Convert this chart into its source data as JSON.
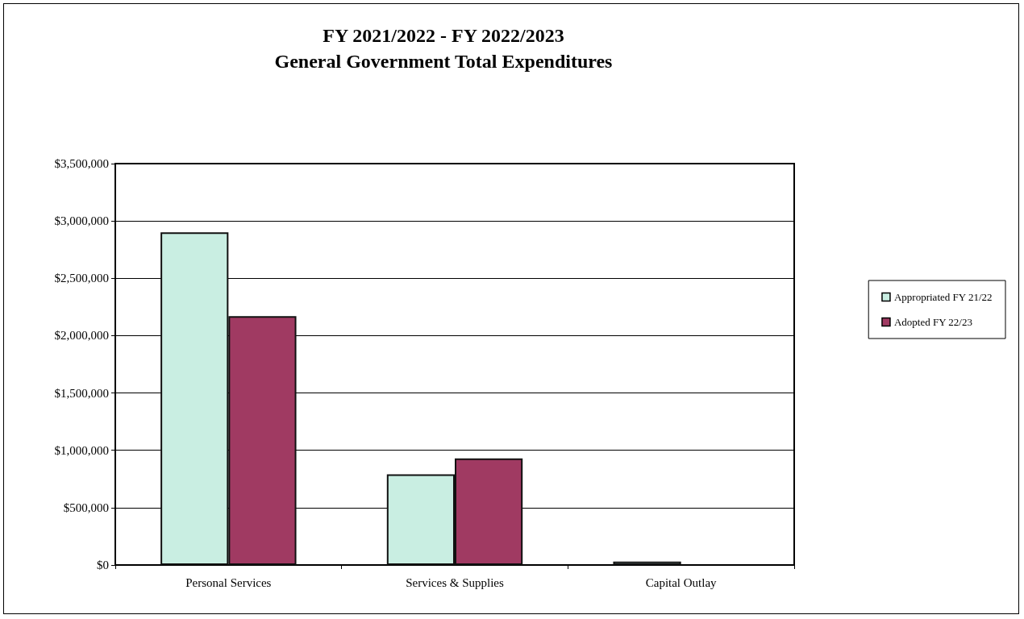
{
  "chart_data": {
    "type": "bar",
    "title": "FY 2021/2022 - FY 2022/2023\nGeneral Government Total Expenditures",
    "categories": [
      "Personal Services",
      "Services & Supplies",
      "Capital Outlay"
    ],
    "series": [
      {
        "name": "Appropriated FY 21/22",
        "color": "#c9eee2",
        "values": [
          2900000,
          790000,
          30000
        ]
      },
      {
        "name": "Adopted FY 22/23",
        "color": "#a03a62",
        "values": [
          2170000,
          930000,
          null
        ]
      }
    ],
    "ylim": [
      0,
      3500000
    ],
    "yticks": [
      {
        "value": 0,
        "label": "$0"
      },
      {
        "value": 500000,
        "label": "$500,000"
      },
      {
        "value": 1000000,
        "label": "$1,000,000"
      },
      {
        "value": 1500000,
        "label": "$1,500,000"
      },
      {
        "value": 2000000,
        "label": "$2,000,000"
      },
      {
        "value": 2500000,
        "label": "$2,500,000"
      },
      {
        "value": 3000000,
        "label": "$3,000,000"
      },
      {
        "value": 3500000,
        "label": "$3,500,000"
      }
    ],
    "grid": "y",
    "legend": "right"
  }
}
